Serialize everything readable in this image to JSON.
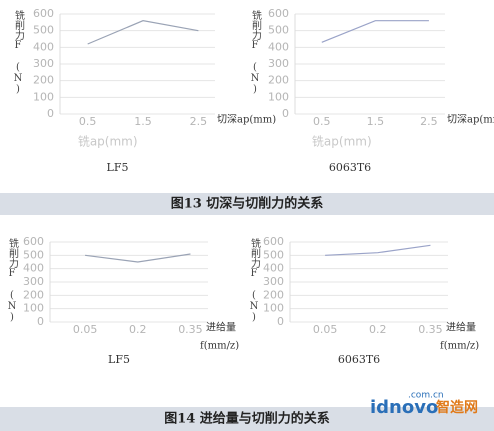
{
  "chart_data": [
    {
      "type": "line",
      "name": "LF5",
      "y_label": "铣削力F (N)",
      "x_label": "切深ap(mm)",
      "x_label_2": "铣ap(mm)",
      "x": [
        0.5,
        1.5,
        2.5
      ],
      "values": [
        420,
        560,
        500
      ],
      "color": "#9aa3b5",
      "xlim": [
        0,
        2.8
      ],
      "xticks": [
        0.5,
        1.5,
        2.5
      ],
      "ylim": [
        0,
        600
      ],
      "yticks": [
        0,
        100,
        200,
        300,
        400,
        500,
        600
      ],
      "grid": true
    },
    {
      "type": "line",
      "name": "6063T6",
      "y_label": "铣削力F (N)",
      "x_label": "切深ap(mm)",
      "x_label_2": "铣ap(mm)",
      "x": [
        0.5,
        1.5,
        2.5
      ],
      "values": [
        430,
        560,
        560
      ],
      "color": "#9aa3c8",
      "xlim": [
        0,
        2.8
      ],
      "xticks": [
        0.5,
        1.5,
        2.5
      ],
      "ylim": [
        0,
        600
      ],
      "yticks": [
        0,
        100,
        200,
        300,
        400,
        500,
        600
      ],
      "grid": true
    },
    {
      "type": "line",
      "name": "LF5",
      "y_label": "铣削力F (N)",
      "x_label": "进给量",
      "x_label_2": "f(mm/z)",
      "x": [
        0.05,
        0.2,
        0.35
      ],
      "values": [
        500,
        450,
        510
      ],
      "color": "#9aa3b5",
      "xlim": [
        -0.05,
        0.4
      ],
      "xticks": [
        0.05,
        0.2,
        0.35
      ],
      "ylim": [
        0,
        600
      ],
      "yticks": [
        0,
        100,
        200,
        300,
        400,
        500,
        600
      ],
      "grid": true
    },
    {
      "type": "line",
      "name": "6063T6",
      "y_label": "铣削力F (N)",
      "x_label": "进给量",
      "x_label_2": "f(mm/z)",
      "x": [
        0.05,
        0.2,
        0.35
      ],
      "values": [
        500,
        520,
        575
      ],
      "color": "#9aa3c8",
      "xlim": [
        -0.05,
        0.4
      ],
      "xticks": [
        0.05,
        0.2,
        0.35
      ],
      "ylim": [
        0,
        600
      ],
      "yticks": [
        0,
        100,
        200,
        300,
        400,
        500,
        600
      ],
      "grid": true
    }
  ],
  "captions": [
    "图13  切深与切削力的关系",
    "图14  进给量与切削力的关系"
  ],
  "watermark": {
    "site": "idnovo",
    "domain": ".com.cn",
    "brand": "智造网"
  }
}
